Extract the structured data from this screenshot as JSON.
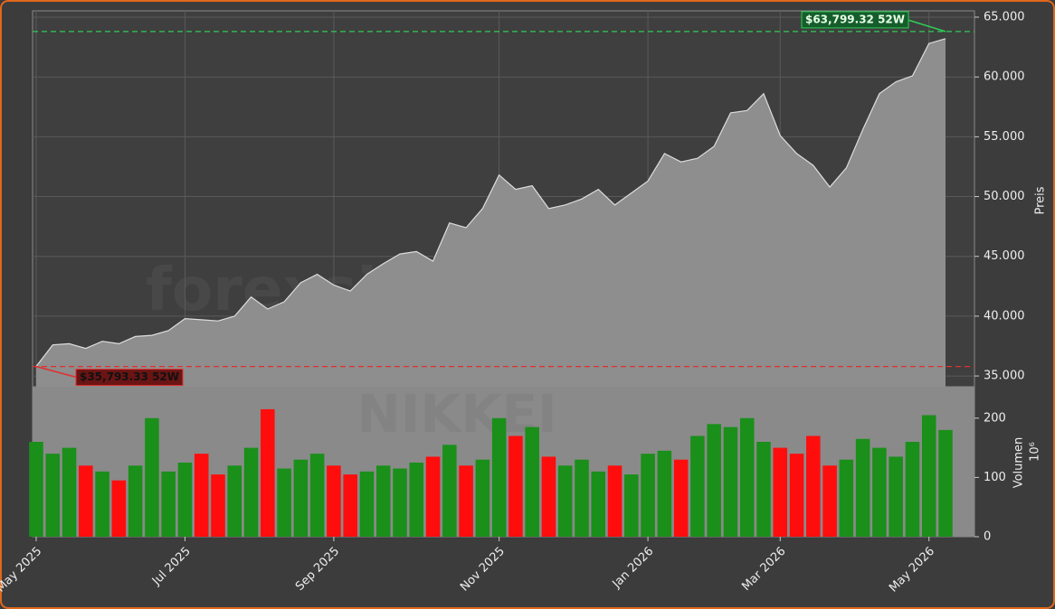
{
  "chart_data": {
    "type": "area",
    "categories": [
      "May 2025",
      null,
      null,
      null,
      null,
      null,
      null,
      null,
      null,
      "Jul 2025",
      null,
      null,
      null,
      null,
      null,
      null,
      null,
      null,
      "Sep 2025",
      null,
      null,
      null,
      null,
      null,
      null,
      null,
      null,
      null,
      "Nov 2025",
      null,
      null,
      null,
      null,
      null,
      null,
      null,
      null,
      "Jan 2026",
      null,
      null,
      null,
      null,
      null,
      null,
      null,
      "Mar 2026",
      null,
      null,
      null,
      null,
      null,
      null,
      null,
      null,
      "May 2026",
      null
    ],
    "values": [
      35800,
      37600,
      37700,
      37300,
      37900,
      37700,
      38300,
      38400,
      38800,
      39800,
      39700,
      39600,
      40000,
      41600,
      40600,
      41200,
      42800,
      43500,
      42600,
      42100,
      43500,
      44400,
      45200,
      45400,
      44600,
      47800,
      47400,
      49000,
      51800,
      50600,
      50900,
      49000,
      49300,
      49800,
      50600,
      49300,
      50300,
      51300,
      53600,
      52900,
      53200,
      54200,
      57000,
      57200,
      58600,
      55100,
      53600,
      52600,
      50800,
      52400,
      55600,
      58600,
      59600,
      60100,
      62800,
      63200
    ],
    "color": "#8e8e8e",
    "ylim": [
      34100,
      65530
    ],
    "yticks": [
      {
        "value": 35000,
        "label": "35.000"
      },
      {
        "value": 40000,
        "label": "40.000"
      },
      {
        "value": 45000,
        "label": "45.000"
      },
      {
        "value": 50000,
        "label": "50.000"
      },
      {
        "value": 55000,
        "label": "55.000"
      },
      {
        "value": 60000,
        "label": "60.000"
      },
      {
        "value": 65000,
        "label": "65.000"
      }
    ],
    "ylabel": "Preis",
    "grid": true,
    "volume": {
      "values": [
        160,
        140,
        150,
        120,
        110,
        95,
        120,
        200,
        110,
        125,
        140,
        105,
        120,
        150,
        215,
        115,
        130,
        140,
        120,
        105,
        110,
        120,
        115,
        125,
        135,
        155,
        120,
        130,
        200,
        170,
        185,
        135,
        120,
        130,
        110,
        120,
        105,
        140,
        145,
        130,
        170,
        190,
        185,
        200,
        160,
        150,
        140,
        170,
        120,
        130,
        165,
        150,
        135,
        160,
        205,
        180
      ],
      "ylim": [
        0,
        253
      ],
      "yticks": [
        0,
        100,
        200
      ],
      "ylabel": "Volumen",
      "scale_label": "10⁶",
      "up_color": "#1a8f1a",
      "down_color": "#ff0d0d"
    },
    "annotations": [
      {
        "text": "$63,799.32 52W",
        "value": 63799.32,
        "color": "#2ecc55"
      },
      {
        "text": "$35,793.33 52W",
        "value": 35793.33,
        "color": "#e03030"
      }
    ],
    "watermarks": [
      "forexsignale.trade",
      "NIKKEI"
    ]
  }
}
